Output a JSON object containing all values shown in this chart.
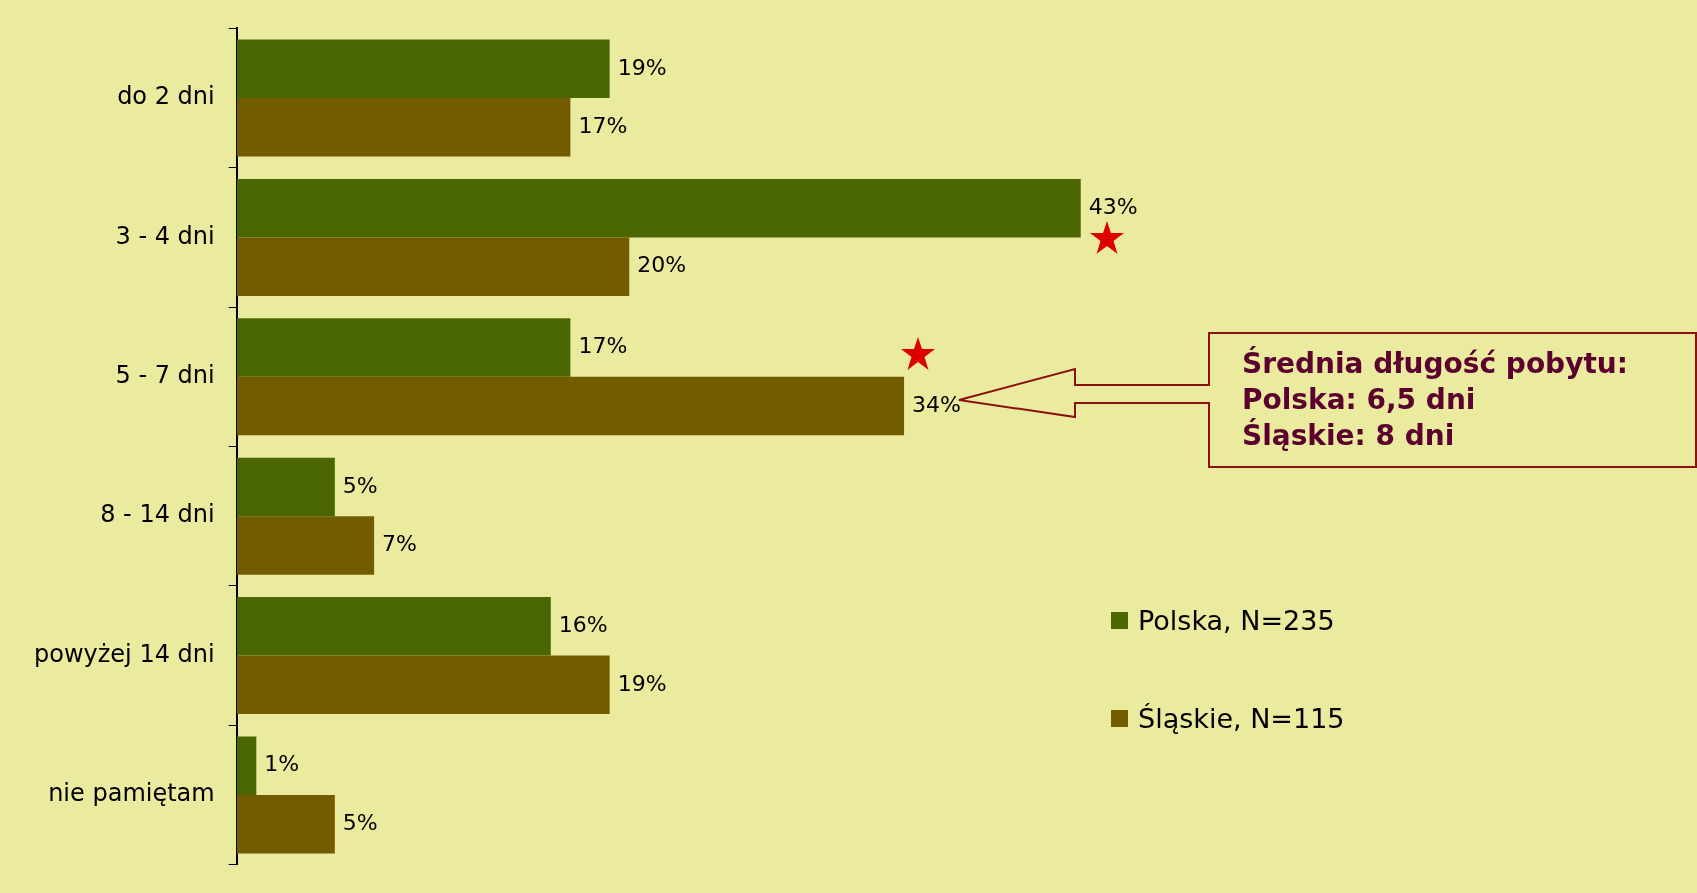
{
  "chart_data": {
    "type": "bar",
    "orientation": "horizontal",
    "categories": [
      "do 2 dni",
      "3 - 4 dni",
      "5 - 7 dni",
      "8 - 14 dni",
      "powyżej 14 dni",
      "nie pamiętam"
    ],
    "series": [
      {
        "name": "Polska, N=235",
        "color": "#4a6600",
        "values": [
          19,
          43,
          17,
          5,
          16,
          1
        ],
        "value_labels": [
          "19%",
          "43%",
          "17%",
          "5%",
          "16%",
          "1%"
        ]
      },
      {
        "name": "Śląskie, N=115",
        "color": "#735c00",
        "values": [
          17,
          20,
          34,
          7,
          19,
          5
        ],
        "value_labels": [
          "17%",
          "20%",
          "34%",
          "7%",
          "19%",
          "5%"
        ]
      }
    ],
    "annotations": [
      "Średnia długość pobytu:\nPolska: 6,5 dni\nŚląskie: 8 dni"
    ],
    "legend": "right"
  }
}
